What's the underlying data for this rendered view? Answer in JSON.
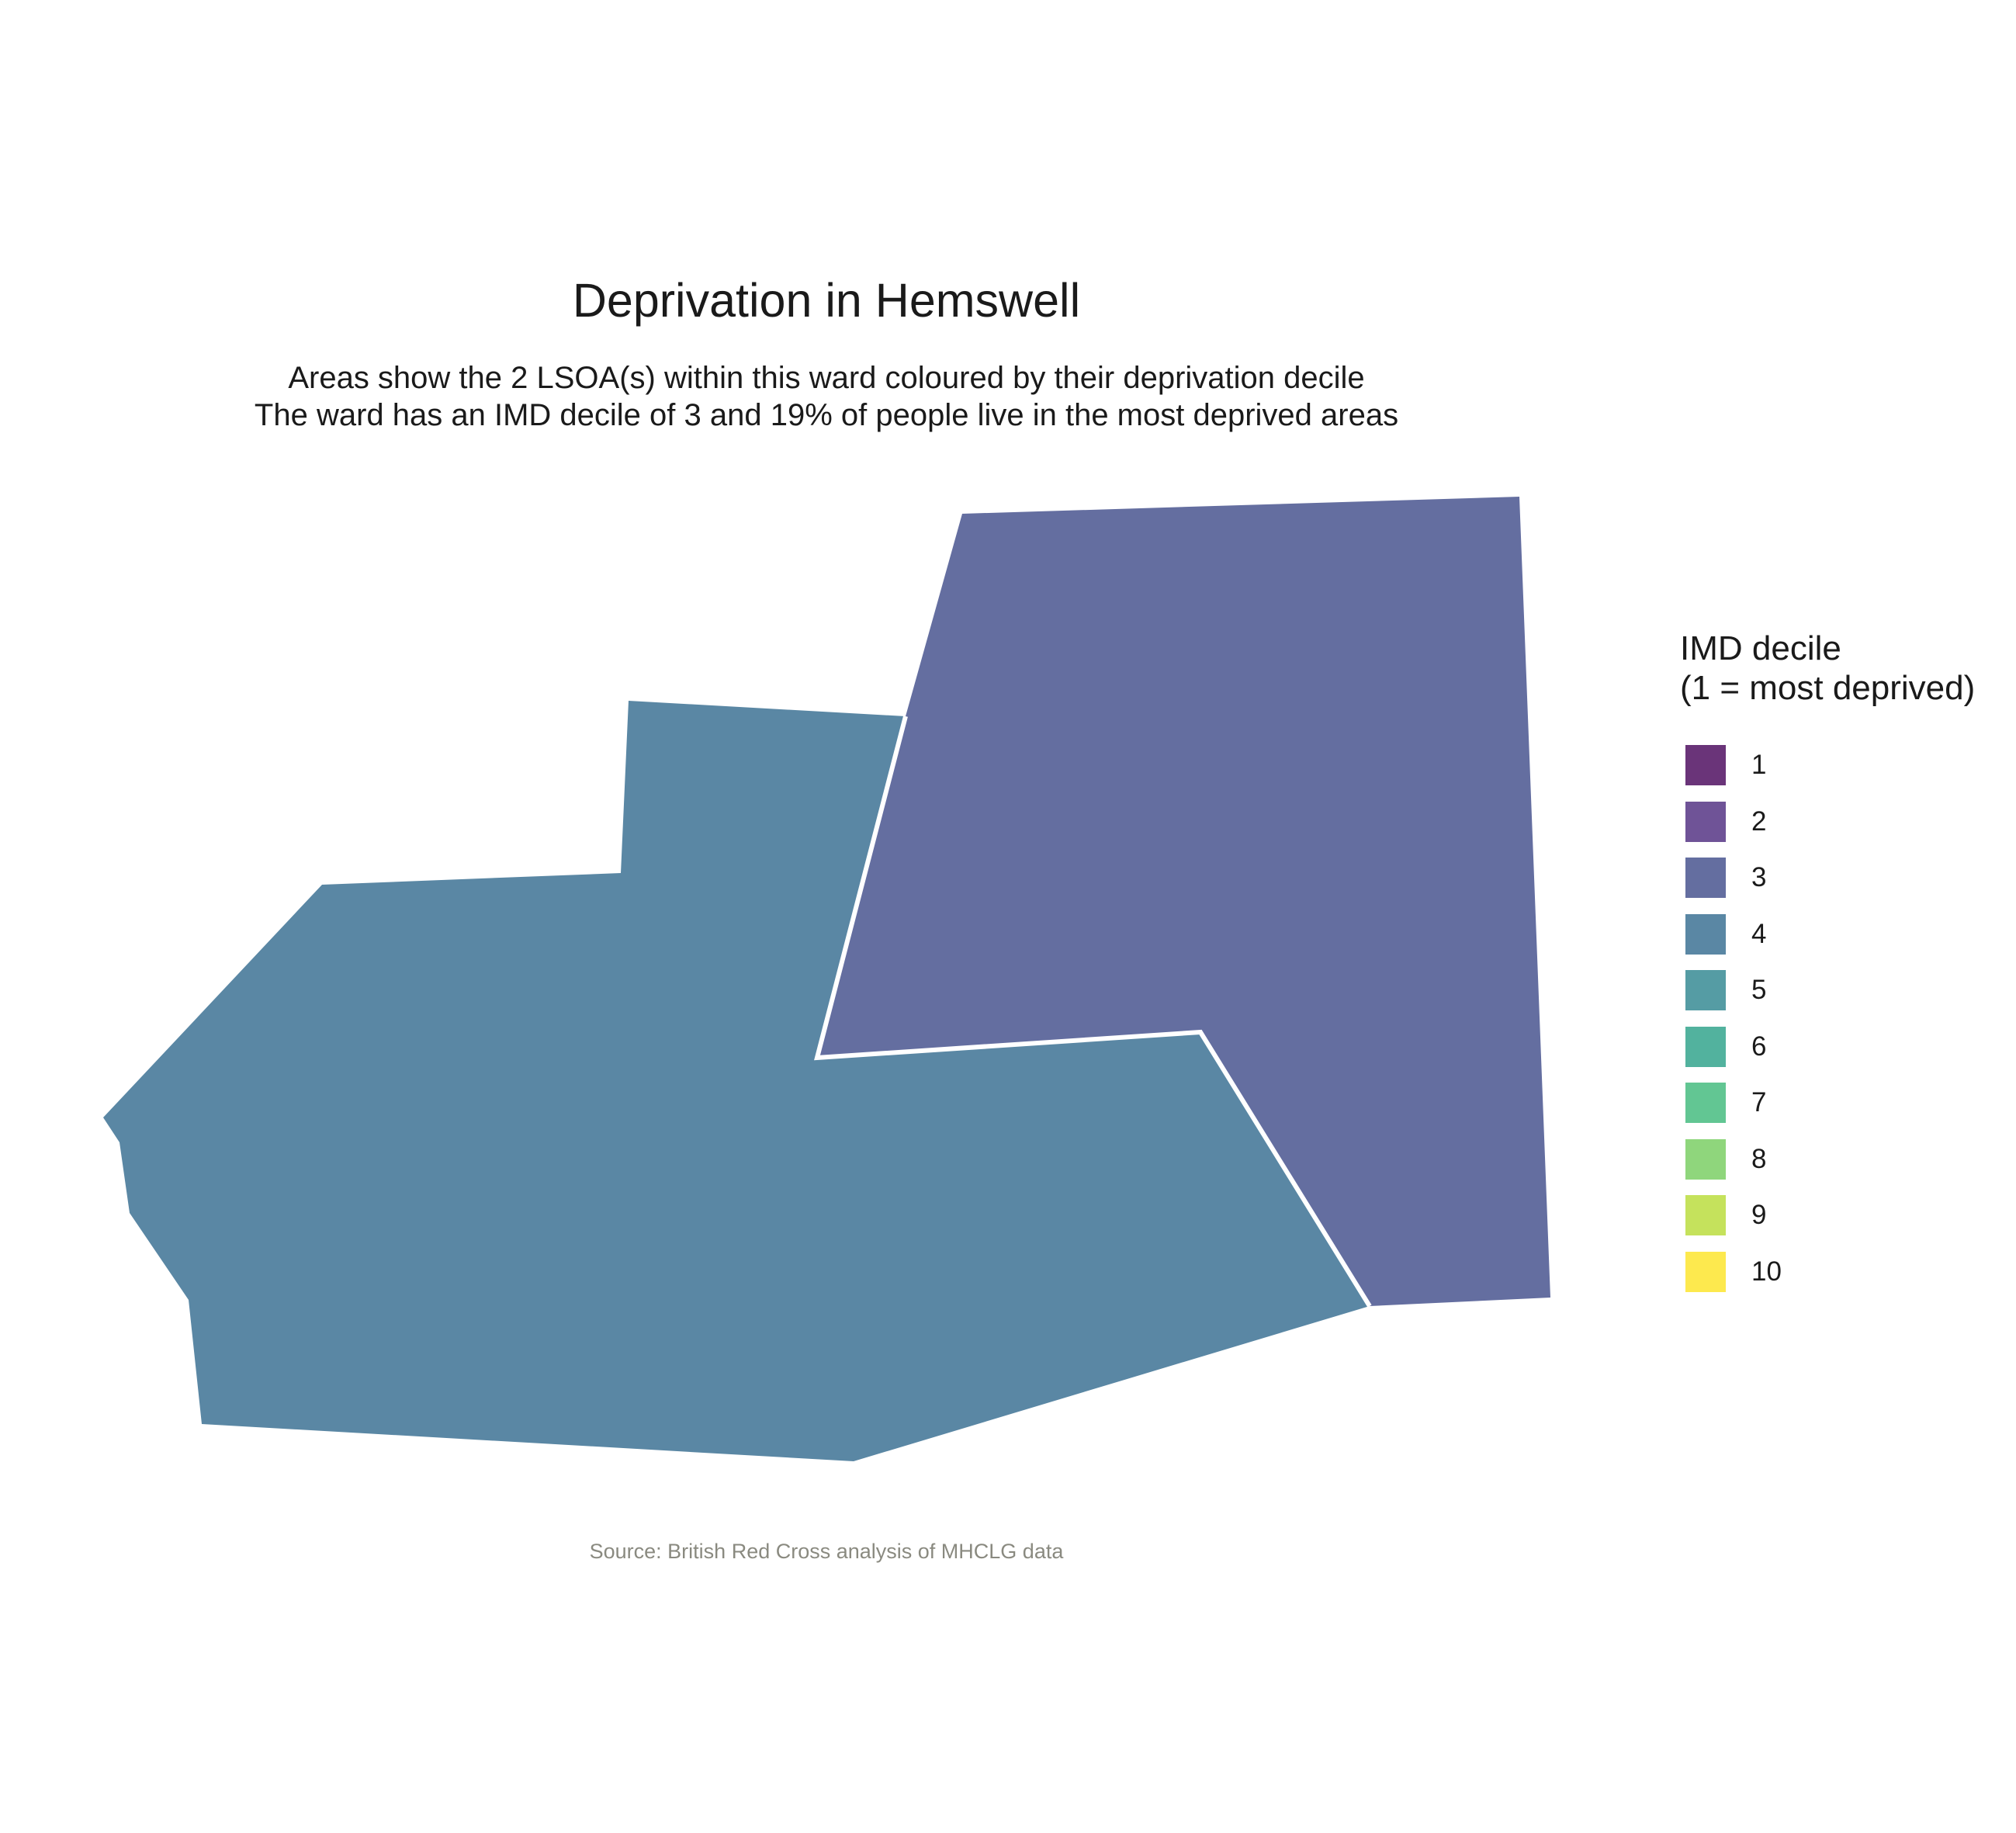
{
  "title": "Deprivation in Hemswell",
  "subtitle": {
    "line1": "Areas show the 2 LSOA(s) within this ward coloured by their deprivation decile",
    "line2": "The ward has an IMD decile of 3 and 19% of people live in the most deprived areas"
  },
  "caption": "Source: British Red Cross analysis of MHCLG data",
  "legend": {
    "title_line1": "IMD decile",
    "title_line2": "(1 = most deprived)",
    "items": [
      {
        "label": "1",
        "color": "#6a3479"
      },
      {
        "label": "2",
        "color": "#6f5397"
      },
      {
        "label": "3",
        "color": "#646ea0"
      },
      {
        "label": "4",
        "color": "#5a87a4"
      },
      {
        "label": "5",
        "color": "#559ca4"
      },
      {
        "label": "6",
        "color": "#52b29e"
      },
      {
        "label": "7",
        "color": "#62c693"
      },
      {
        "label": "8",
        "color": "#8fd67c"
      },
      {
        "label": "9",
        "color": "#c5e25c"
      },
      {
        "label": "10",
        "color": "#fde94e"
      }
    ]
  },
  "map": {
    "areas": [
      {
        "name": "lsoa-west",
        "decile": 4,
        "color": "#5a87a4"
      },
      {
        "name": "lsoa-east",
        "decile": 3,
        "color": "#646ea0"
      }
    ],
    "border_color": "#ffffff"
  }
}
